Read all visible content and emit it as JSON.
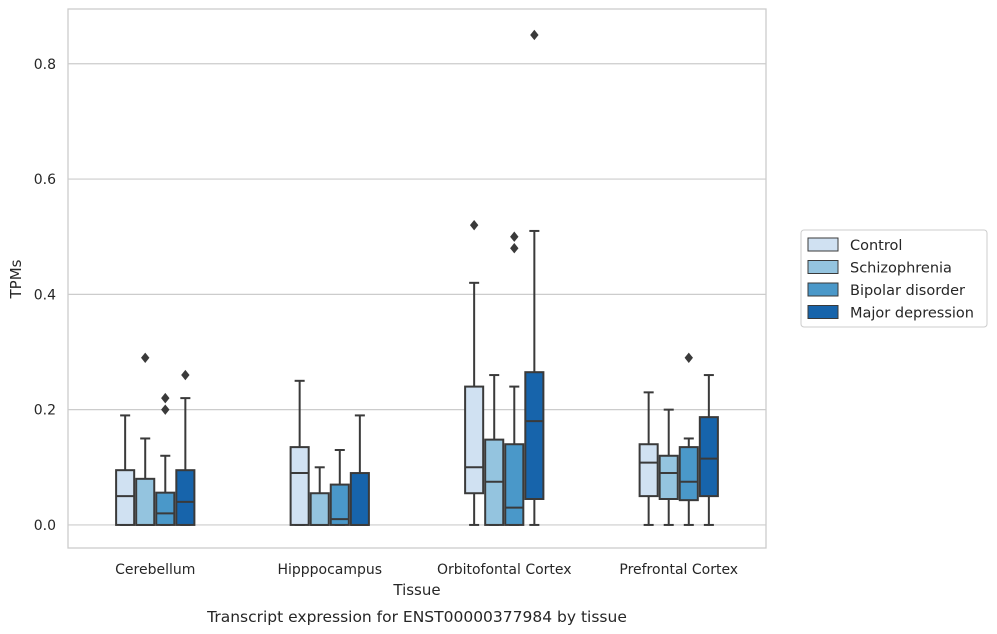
{
  "chart_data": {
    "type": "box",
    "title": "",
    "caption": "Transcript expression for ENST00000377984 by tissue",
    "xlabel": "Tissue",
    "ylabel": "TPMs",
    "ylim": [
      -0.04,
      0.895
    ],
    "yticks": [
      "0.0",
      "0.2",
      "0.4",
      "0.6",
      "0.8"
    ],
    "ytick_values": [
      0.0,
      0.2,
      0.4,
      0.6,
      0.8
    ],
    "grid": "horizontal",
    "legend_position": "right",
    "categories": [
      "Cerebellum",
      "Hipppocampus",
      "Orbitofontal Cortex",
      "Prefrontal Cortex"
    ],
    "series": [
      {
        "name": "Control",
        "color": "#d0e1f2",
        "boxes": [
          {
            "whislo": 0.0,
            "q1": 0.0,
            "median": 0.05,
            "q3": 0.095,
            "whishi": 0.19,
            "fliers": []
          },
          {
            "whislo": 0.0,
            "q1": 0.0,
            "median": 0.09,
            "q3": 0.135,
            "whishi": 0.25,
            "fliers": []
          },
          {
            "whislo": 0.0,
            "q1": 0.055,
            "median": 0.1,
            "q3": 0.24,
            "whishi": 0.42,
            "fliers": [
              0.52
            ]
          },
          {
            "whislo": 0.0,
            "q1": 0.05,
            "median": 0.108,
            "q3": 0.14,
            "whishi": 0.23,
            "fliers": []
          }
        ]
      },
      {
        "name": "Schizophrenia",
        "color": "#94c4df",
        "boxes": [
          {
            "whislo": 0.0,
            "q1": 0.0,
            "median": 0.0,
            "q3": 0.08,
            "whishi": 0.15,
            "fliers": [
              0.29
            ]
          },
          {
            "whislo": 0.0,
            "q1": 0.0,
            "median": 0.0,
            "q3": 0.055,
            "whishi": 0.1,
            "fliers": []
          },
          {
            "whislo": 0.0,
            "q1": 0.0,
            "median": 0.075,
            "q3": 0.148,
            "whishi": 0.26,
            "fliers": []
          },
          {
            "whislo": 0.0,
            "q1": 0.045,
            "median": 0.09,
            "q3": 0.12,
            "whishi": 0.2,
            "fliers": []
          }
        ]
      },
      {
        "name": "Bipolar disorder",
        "color": "#4a98c9",
        "boxes": [
          {
            "whislo": 0.0,
            "q1": 0.0,
            "median": 0.02,
            "q3": 0.056,
            "whishi": 0.12,
            "fliers": [
              0.2,
              0.22
            ]
          },
          {
            "whislo": 0.0,
            "q1": 0.0,
            "median": 0.01,
            "q3": 0.07,
            "whishi": 0.13,
            "fliers": []
          },
          {
            "whislo": 0.0,
            "q1": 0.0,
            "median": 0.03,
            "q3": 0.14,
            "whishi": 0.24,
            "fliers": [
              0.48,
              0.5
            ]
          },
          {
            "whislo": 0.0,
            "q1": 0.043,
            "median": 0.075,
            "q3": 0.135,
            "whishi": 0.15,
            "fliers": [
              0.29
            ]
          }
        ]
      },
      {
        "name": "Major depression",
        "color": "#1764ab",
        "boxes": [
          {
            "whislo": 0.0,
            "q1": 0.0,
            "median": 0.04,
            "q3": 0.095,
            "whishi": 0.22,
            "fliers": [
              0.26
            ]
          },
          {
            "whislo": 0.0,
            "q1": 0.0,
            "median": 0.0,
            "q3": 0.09,
            "whishi": 0.19,
            "fliers": []
          },
          {
            "whislo": 0.0,
            "q1": 0.045,
            "median": 0.18,
            "q3": 0.265,
            "whishi": 0.51,
            "fliers": [
              0.85
            ]
          },
          {
            "whislo": 0.0,
            "q1": 0.05,
            "median": 0.115,
            "q3": 0.187,
            "whishi": 0.26,
            "fliers": []
          }
        ]
      }
    ]
  }
}
